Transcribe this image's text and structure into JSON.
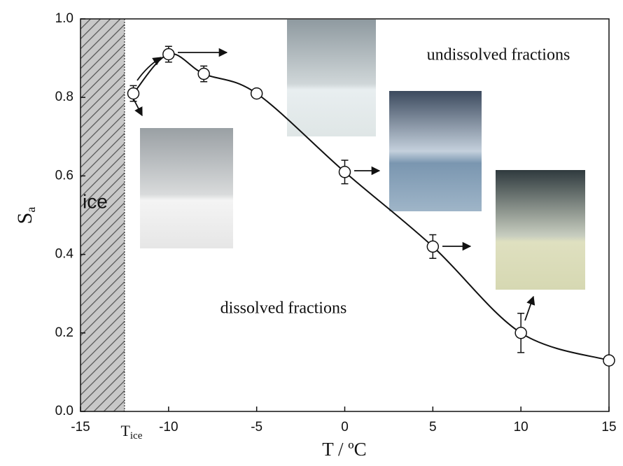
{
  "chart_data": {
    "type": "line",
    "xlabel": "T / ºC",
    "ylabel": "S",
    "ylabel_sub": "a",
    "x": [
      -12,
      -10,
      -8,
      -5,
      0,
      5,
      10,
      15
    ],
    "values": [
      0.81,
      0.91,
      0.86,
      0.81,
      0.61,
      0.42,
      0.2,
      0.13
    ],
    "errors": [
      0.02,
      0.02,
      0.02,
      0.01,
      0.03,
      0.03,
      0.05,
      0
    ],
    "xlim": [
      -15,
      15
    ],
    "ylim": [
      0,
      1
    ],
    "xticks": [
      -15,
      -10,
      -5,
      0,
      5,
      10,
      15
    ],
    "yticks": [
      {
        "value": 0,
        "label": "0.0"
      },
      0.2,
      0.4,
      0.6,
      0.8,
      {
        "value": 1,
        "label": "1.0"
      }
    ],
    "ice_region": {
      "xlim": [
        -15,
        -12.5
      ],
      "label": "ice"
    },
    "ice_temperature": {
      "value": -12.5,
      "label": "T",
      "sub": "ice"
    },
    "annotations": [
      "undissolved fractions",
      "dissolved fractions"
    ]
  }
}
